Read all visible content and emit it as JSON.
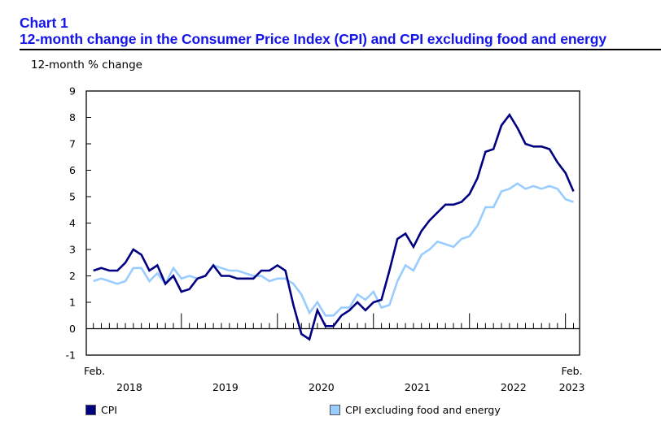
{
  "header": {
    "chart_number": "Chart 1",
    "chart_title": "12-month change in the Consumer Price Index (CPI) and CPI excluding food and energy"
  },
  "colors": {
    "title": "#1515e6",
    "cpi": "#000080",
    "core": "#99ccff"
  },
  "chart_data": {
    "type": "line",
    "title": "12-month change in the Consumer Price Index (CPI) and CPI excluding food and energy",
    "ylabel": "12-month % change",
    "xlabel": "",
    "ylim": [
      -1,
      9
    ],
    "yticks": [
      -1,
      0,
      1,
      2,
      3,
      4,
      5,
      6,
      7,
      8,
      9
    ],
    "grid": false,
    "legend_position": "bottom",
    "x_start_label": "Feb.",
    "x_end_label": "Feb.",
    "year_labels": [
      "2018",
      "2019",
      "2020",
      "2021",
      "2022",
      "2023"
    ],
    "x": [
      "2018-02",
      "2018-03",
      "2018-04",
      "2018-05",
      "2018-06",
      "2018-07",
      "2018-08",
      "2018-09",
      "2018-10",
      "2018-11",
      "2018-12",
      "2019-01",
      "2019-02",
      "2019-03",
      "2019-04",
      "2019-05",
      "2019-06",
      "2019-07",
      "2019-08",
      "2019-09",
      "2019-10",
      "2019-11",
      "2019-12",
      "2020-01",
      "2020-02",
      "2020-03",
      "2020-04",
      "2020-05",
      "2020-06",
      "2020-07",
      "2020-08",
      "2020-09",
      "2020-10",
      "2020-11",
      "2020-12",
      "2021-01",
      "2021-02",
      "2021-03",
      "2021-04",
      "2021-05",
      "2021-06",
      "2021-07",
      "2021-08",
      "2021-09",
      "2021-10",
      "2021-11",
      "2021-12",
      "2022-01",
      "2022-02",
      "2022-03",
      "2022-04",
      "2022-05",
      "2022-06",
      "2022-07",
      "2022-08",
      "2022-09",
      "2022-10",
      "2022-11",
      "2022-12",
      "2023-01",
      "2023-02"
    ],
    "series": [
      {
        "name": "CPI",
        "color": "#000080",
        "values": [
          2.2,
          2.3,
          2.2,
          2.2,
          2.5,
          3.0,
          2.8,
          2.2,
          2.4,
          1.7,
          2.0,
          1.4,
          1.5,
          1.9,
          2.0,
          2.4,
          2.0,
          2.0,
          1.9,
          1.9,
          1.9,
          2.2,
          2.2,
          2.4,
          2.2,
          0.9,
          -0.2,
          -0.4,
          0.7,
          0.1,
          0.1,
          0.5,
          0.7,
          1.0,
          0.7,
          1.0,
          1.1,
          2.2,
          3.4,
          3.6,
          3.1,
          3.7,
          4.1,
          4.4,
          4.7,
          4.7,
          4.8,
          5.1,
          5.7,
          6.7,
          6.8,
          7.7,
          8.1,
          7.6,
          7.0,
          6.9,
          6.9,
          6.8,
          6.3,
          5.9,
          5.2
        ]
      },
      {
        "name": "CPI excluding food and energy",
        "color": "#99ccff",
        "values": [
          1.8,
          1.9,
          1.8,
          1.7,
          1.8,
          2.3,
          2.3,
          1.8,
          2.1,
          1.7,
          2.3,
          1.9,
          2.0,
          1.9,
          2.0,
          2.4,
          2.3,
          2.2,
          2.2,
          2.1,
          2.0,
          2.0,
          1.8,
          1.9,
          1.9,
          1.7,
          1.3,
          0.6,
          1.0,
          0.5,
          0.5,
          0.8,
          0.8,
          1.3,
          1.1,
          1.4,
          0.8,
          0.9,
          1.8,
          2.4,
          2.2,
          2.8,
          3.0,
          3.3,
          3.2,
          3.1,
          3.4,
          3.5,
          3.9,
          4.6,
          4.6,
          5.2,
          5.3,
          5.5,
          5.3,
          5.4,
          5.3,
          5.4,
          5.3,
          4.9,
          4.8
        ]
      }
    ]
  },
  "legend": [
    {
      "label": "CPI",
      "color": "#000080"
    },
    {
      "label": "CPI excluding food and energy",
      "color": "#99ccff"
    }
  ]
}
